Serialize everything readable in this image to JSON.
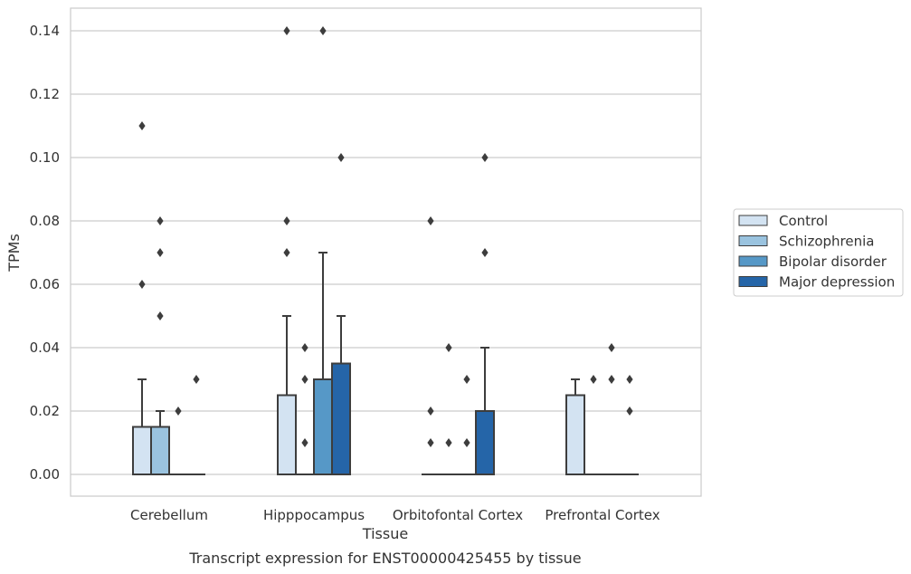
{
  "chart_data": {
    "type": "box",
    "title": "",
    "caption": "Transcript expression for ENST00000425455 by tissue",
    "xlabel": "Tissue",
    "ylabel": "TPMs",
    "ylim": [
      -0.007,
      0.147
    ],
    "yticks": [
      "0.00",
      "0.02",
      "0.04",
      "0.06",
      "0.08",
      "0.10",
      "0.12",
      "0.14"
    ],
    "grid": "horizontal",
    "legend_position": "right-outside",
    "categories": [
      "Cerebellum",
      "Hipppocampus",
      "Orbitofontal Cortex",
      "Prefrontal Cortex"
    ],
    "series": [
      {
        "name": "Control",
        "color": "#d3e3f2",
        "boxes": [
          {
            "q1": 0.0,
            "q3": 0.015,
            "median": 0.0,
            "whisker_low": 0.0,
            "whisker_high": 0.03,
            "outliers": [
              0.06,
              0.11
            ]
          },
          {
            "q1": 0.0,
            "q3": 0.025,
            "median": 0.0,
            "whisker_low": 0.0,
            "whisker_high": 0.05,
            "outliers": [
              0.07,
              0.08,
              0.14
            ]
          },
          {
            "q1": 0.0,
            "q3": 0.0,
            "median": 0.0,
            "whisker_low": 0.0,
            "whisker_high": 0.0,
            "outliers": [
              0.02,
              0.01,
              0.08
            ]
          },
          {
            "q1": 0.0,
            "q3": 0.025,
            "median": 0.0,
            "whisker_low": 0.0,
            "whisker_high": 0.03,
            "outliers": []
          }
        ]
      },
      {
        "name": "Schizophrenia",
        "color": "#9ac3df",
        "boxes": [
          {
            "q1": 0.0,
            "q3": 0.015,
            "median": 0.0,
            "whisker_low": 0.0,
            "whisker_high": 0.02,
            "outliers": [
              0.05,
              0.07,
              0.08
            ]
          },
          {
            "q1": 0.0,
            "q3": 0.0,
            "median": 0.0,
            "whisker_low": 0.0,
            "whisker_high": 0.0,
            "outliers": [
              0.01,
              0.03,
              0.04
            ]
          },
          {
            "q1": 0.0,
            "q3": 0.0,
            "median": 0.0,
            "whisker_low": 0.0,
            "whisker_high": 0.0,
            "outliers": [
              0.01,
              0.04
            ]
          },
          {
            "q1": 0.0,
            "q3": 0.0,
            "median": 0.0,
            "whisker_low": 0.0,
            "whisker_high": 0.0,
            "outliers": [
              0.03
            ]
          }
        ]
      },
      {
        "name": "Bipolar disorder",
        "color": "#5698c7",
        "boxes": [
          {
            "q1": 0.0,
            "q3": 0.0,
            "median": 0.0,
            "whisker_low": 0.0,
            "whisker_high": 0.0,
            "outliers": [
              0.02
            ]
          },
          {
            "q1": 0.0,
            "q3": 0.03,
            "median": 0.0,
            "whisker_low": 0.0,
            "whisker_high": 0.07,
            "outliers": [
              0.14
            ]
          },
          {
            "q1": 0.0,
            "q3": 0.0,
            "median": 0.0,
            "whisker_low": 0.0,
            "whisker_high": 0.0,
            "outliers": [
              0.01,
              0.03
            ]
          },
          {
            "q1": 0.0,
            "q3": 0.0,
            "median": 0.0,
            "whisker_low": 0.0,
            "whisker_high": 0.0,
            "outliers": [
              0.03,
              0.04
            ]
          }
        ]
      },
      {
        "name": "Major depression",
        "color": "#2565a8",
        "boxes": [
          {
            "q1": 0.0,
            "q3": 0.0,
            "median": 0.0,
            "whisker_low": 0.0,
            "whisker_high": 0.0,
            "outliers": [
              0.03
            ]
          },
          {
            "q1": 0.0,
            "q3": 0.035,
            "median": 0.0,
            "whisker_low": 0.0,
            "whisker_high": 0.05,
            "outliers": [
              0.1
            ]
          },
          {
            "q1": 0.0,
            "q3": 0.02,
            "median": 0.0,
            "whisker_low": 0.0,
            "whisker_high": 0.04,
            "outliers": [
              0.07,
              0.1
            ]
          },
          {
            "q1": 0.0,
            "q3": 0.0,
            "median": 0.0,
            "whisker_low": 0.0,
            "whisker_high": 0.0,
            "outliers": [
              0.02,
              0.03
            ]
          }
        ]
      }
    ]
  }
}
